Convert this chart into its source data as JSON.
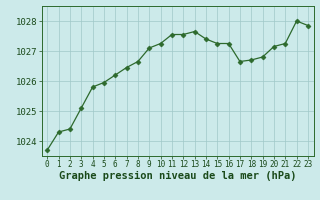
{
  "x": [
    0,
    1,
    2,
    3,
    4,
    5,
    6,
    7,
    8,
    9,
    10,
    11,
    12,
    13,
    14,
    15,
    16,
    17,
    18,
    19,
    20,
    21,
    22,
    23
  ],
  "y": [
    1023.7,
    1024.3,
    1024.4,
    1025.1,
    1025.8,
    1025.95,
    1026.2,
    1026.45,
    1026.65,
    1027.1,
    1027.25,
    1027.55,
    1027.55,
    1027.65,
    1027.4,
    1027.25,
    1027.25,
    1026.65,
    1026.7,
    1026.8,
    1027.15,
    1027.25,
    1028.0,
    1027.85
  ],
  "line_color": "#2d6a2d",
  "marker": "D",
  "marker_size": 2.5,
  "bg_color": "#cceaea",
  "grid_color": "#a0c8c8",
  "axis_color": "#2d6a2d",
  "xlabel": "Graphe pression niveau de la mer (hPa)",
  "xlabel_fontsize": 7.5,
  "xlabel_color": "#1a4a1a",
  "tick_color": "#1a4a1a",
  "ylim": [
    1023.5,
    1028.5
  ],
  "yticks": [
    1024,
    1025,
    1026,
    1027,
    1028
  ],
  "xlim": [
    -0.5,
    23.5
  ],
  "xticks": [
    0,
    1,
    2,
    3,
    4,
    5,
    6,
    7,
    8,
    9,
    10,
    11,
    12,
    13,
    14,
    15,
    16,
    17,
    18,
    19,
    20,
    21,
    22,
    23
  ]
}
